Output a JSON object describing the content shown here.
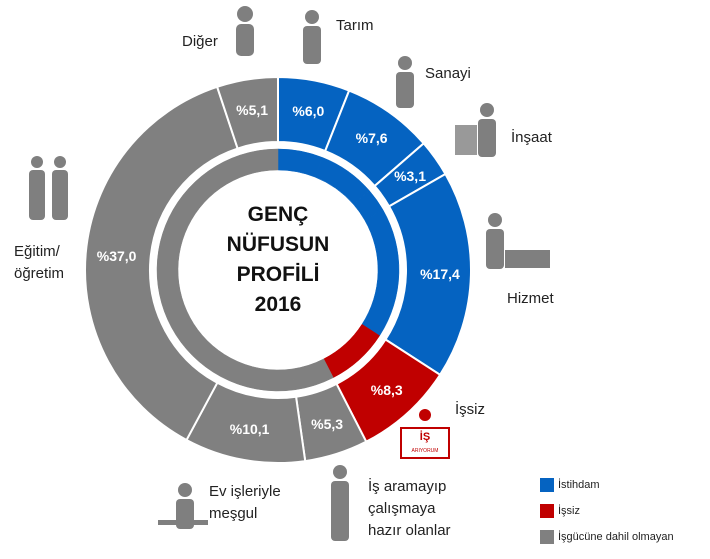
{
  "chart_data": {
    "type": "donut",
    "title": "GENÇ\nNÜFUSUN\nPROFİLİ\n2016",
    "categories": [
      "Tarım",
      "Sanayi",
      "İnşaat",
      "Hizmet",
      "İşsiz",
      "İş aramayıp\nçalışmaya\nhazır olanlar",
      "Ev işleriyle\nmeşgul",
      "Eğitim/\nöğretim",
      "Diğer"
    ],
    "values": [
      6.0,
      7.6,
      3.1,
      17.4,
      8.3,
      5.3,
      10.1,
      37.0,
      5.1
    ],
    "value_labels": [
      "%6,0",
      "%7,6",
      "%3,1",
      "%17,4",
      "%8,3",
      "%5,3",
      "%10,1",
      "%37,0",
      "%5,1"
    ],
    "colors": [
      "#0563c1",
      "#0563c1",
      "#0563c1",
      "#0563c1",
      "#c00000",
      "#808080",
      "#808080",
      "#808080",
      "#808080"
    ],
    "legend": [
      {
        "name": "İstihdam",
        "color": "#0563c1"
      },
      {
        "name": "İşsiz",
        "color": "#c00000"
      },
      {
        "name": "İşgücüne dahil olmayan",
        "color": "#808080"
      }
    ],
    "sign": {
      "line1": "İŞ",
      "line2": "ARIYORUM"
    }
  }
}
